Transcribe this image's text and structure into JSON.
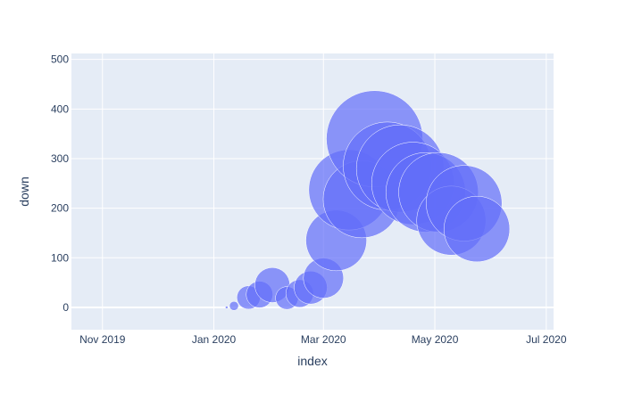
{
  "chart_data": {
    "type": "scatter",
    "xlabel": "index",
    "ylabel": "down",
    "xlim": [
      "2019-10-15",
      "2020-07-05"
    ],
    "ylim": [
      -45,
      512
    ],
    "x_ticks": [
      {
        "date": "2019-11-01",
        "label": "Nov 2019"
      },
      {
        "date": "2020-01-01",
        "label": "Jan 2020"
      },
      {
        "date": "2020-03-01",
        "label": "Mar 2020"
      },
      {
        "date": "2020-05-01",
        "label": "May 2020"
      },
      {
        "date": "2020-07-01",
        "label": "Jul 2020"
      }
    ],
    "y_ticks": [
      0,
      100,
      200,
      300,
      400,
      500
    ],
    "marker_color": "#636efa",
    "plot_background": "#e5ecf6",
    "grid": true,
    "points": [
      {
        "x": "2020-01-08",
        "y": 0,
        "size": 0
      },
      {
        "x": "2020-01-12",
        "y": 3,
        "size": 3
      },
      {
        "x": "2020-01-20",
        "y": 20,
        "size": 20
      },
      {
        "x": "2020-01-26",
        "y": 26,
        "size": 26
      },
      {
        "x": "2020-02-02",
        "y": 45,
        "size": 45
      },
      {
        "x": "2020-02-10",
        "y": 19,
        "size": 19
      },
      {
        "x": "2020-02-17",
        "y": 28,
        "size": 28
      },
      {
        "x": "2020-02-23",
        "y": 40,
        "size": 40
      },
      {
        "x": "2020-03-01",
        "y": 59,
        "size": 59
      },
      {
        "x": "2020-03-08",
        "y": 135,
        "size": 135
      },
      {
        "x": "2020-03-15",
        "y": 237,
        "size": 237
      },
      {
        "x": "2020-03-22",
        "y": 218,
        "size": 218
      },
      {
        "x": "2020-03-29",
        "y": 340,
        "size": 340
      },
      {
        "x": "2020-04-05",
        "y": 285,
        "size": 285
      },
      {
        "x": "2020-04-12",
        "y": 280,
        "size": 280
      },
      {
        "x": "2020-04-19",
        "y": 250,
        "size": 250
      },
      {
        "x": "2020-04-26",
        "y": 232,
        "size": 232
      },
      {
        "x": "2020-05-03",
        "y": 232,
        "size": 232
      },
      {
        "x": "2020-05-10",
        "y": 175,
        "size": 175
      },
      {
        "x": "2020-05-17",
        "y": 210,
        "size": 210
      },
      {
        "x": "2020-05-24",
        "y": 158,
        "size": 158
      }
    ]
  }
}
